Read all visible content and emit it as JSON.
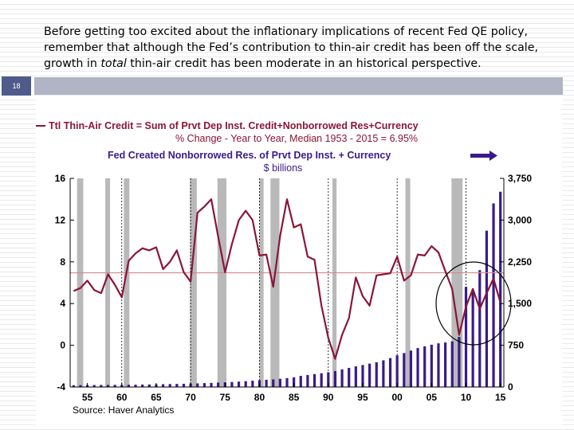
{
  "slide": {
    "number": "18",
    "header_text_1": "Before getting too excited about the inflationary implications of recent Fed QE policy, remember that although the Fed’s contribution to thin-air credit has been off the scale, growth in ",
    "header_emphasis": "total",
    "header_text_2": " thin-air credit has been moderate in an historical perspective."
  },
  "colors": {
    "line": "#8a1538",
    "bars": "#3a1a8a",
    "recession": "#b9b9b9",
    "median_line": "#d48a8a",
    "title_left": "#8a1538",
    "title_right": "#3a1a8a"
  },
  "chart_data": {
    "type": "bar",
    "title_left": "Ttl Thin-Air Credit = Sum of Prvt Dep Inst. Credit+Nonborrowed Res+Currency",
    "subtitle_left": "% Change - Year to Year, Median 1953 - 2015 = 6.95%",
    "title_right": "Fed Created Nonborrowed Res. of Prvt Dep Inst. + Currency",
    "subtitle_right": "$ billions",
    "source": "Source:   Haver Analytics",
    "x_range": [
      1952.5,
      2015.5
    ],
    "x_ticks": [
      1955,
      1960,
      1965,
      1970,
      1975,
      1980,
      1985,
      1990,
      1995,
      2000,
      2005,
      2010,
      2015
    ],
    "x_tick_labels": [
      "55",
      "60",
      "65",
      "70",
      "75",
      "80",
      "85",
      "90",
      "95",
      "00",
      "05",
      "10",
      "15"
    ],
    "y_left": {
      "min": -4,
      "max": 16,
      "ticks": [
        -4,
        0,
        4,
        8,
        12,
        16
      ],
      "tick_labels": [
        "-4",
        "0",
        "4",
        "8",
        "12",
        "16"
      ]
    },
    "y_right": {
      "min": 0,
      "max": 3750,
      "ticks": [
        0,
        750,
        1500,
        2250,
        3000,
        3750
      ],
      "tick_labels": [
        "0",
        "750",
        "1,500",
        "2,250",
        "3,000",
        "3,750"
      ]
    },
    "dashed_years": [
      1960,
      1970,
      1980,
      1990,
      2000,
      2010
    ],
    "median": 6.95,
    "recessions": [
      [
        1953.5,
        1954.4
      ],
      [
        1957.6,
        1958.3
      ],
      [
        1960.3,
        1961.1
      ],
      [
        1969.9,
        1970.9
      ],
      [
        1973.9,
        1975.2
      ],
      [
        1980.0,
        1980.6
      ],
      [
        1981.6,
        1982.9
      ],
      [
        1990.6,
        1991.2
      ],
      [
        2001.2,
        2001.9
      ],
      [
        2007.9,
        2009.5
      ]
    ],
    "series": [
      {
        "name": "Ttl Thin-Air Credit % Change Y/Y",
        "axis": "left",
        "x": [
          1953,
          1954,
          1955,
          1956,
          1957,
          1958,
          1959,
          1960,
          1961,
          1962,
          1963,
          1964,
          1965,
          1966,
          1967,
          1968,
          1969,
          1970,
          1971,
          1972,
          1973,
          1974,
          1975,
          1976,
          1977,
          1978,
          1979,
          1980,
          1981,
          1982,
          1983,
          1984,
          1985,
          1986,
          1987,
          1988,
          1989,
          1990,
          1991,
          1992,
          1993,
          1994,
          1995,
          1996,
          1997,
          1998,
          1999,
          2000,
          2001,
          2002,
          2003,
          2004,
          2005,
          2006,
          2007,
          2008,
          2009,
          2010,
          2011,
          2012,
          2013,
          2014,
          2015
        ],
        "values": [
          5.2,
          5.5,
          6.2,
          5.3,
          5.0,
          6.8,
          5.8,
          4.6,
          8.1,
          8.8,
          9.3,
          9.1,
          9.4,
          7.3,
          8.0,
          9.1,
          7.0,
          6.1,
          12.7,
          13.3,
          14.0,
          10.4,
          7.0,
          9.7,
          12.0,
          12.9,
          12.0,
          8.6,
          8.7,
          5.6,
          10.5,
          14.0,
          11.3,
          11.6,
          8.5,
          8.2,
          3.8,
          0.7,
          -1.3,
          1.0,
          2.6,
          6.5,
          4.7,
          3.8,
          6.7,
          6.8,
          6.9,
          8.5,
          6.2,
          6.7,
          8.7,
          8.6,
          9.5,
          8.9,
          7.1,
          5.4,
          1.0,
          3.7,
          5.4,
          3.5,
          5.0,
          6.4,
          4.1
        ]
      },
      {
        "name": "Fed Created Nonborrowed Res. + Currency ($ bil)",
        "axis": "right",
        "x": [
          1953,
          1954,
          1955,
          1956,
          1957,
          1958,
          1959,
          1960,
          1961,
          1962,
          1963,
          1964,
          1965,
          1966,
          1967,
          1968,
          1969,
          1970,
          1971,
          1972,
          1973,
          1974,
          1975,
          1976,
          1977,
          1978,
          1979,
          1980,
          1981,
          1982,
          1983,
          1984,
          1985,
          1986,
          1987,
          1988,
          1989,
          1990,
          1991,
          1992,
          1993,
          1994,
          1995,
          1996,
          1997,
          1998,
          1999,
          2000,
          2001,
          2002,
          2003,
          2004,
          2005,
          2006,
          2007,
          2008,
          2009,
          2010,
          2011,
          2012,
          2013,
          2014,
          2015
        ],
        "values": [
          32,
          34,
          35,
          36,
          37,
          38,
          39,
          39,
          41,
          42,
          44,
          46,
          48,
          50,
          53,
          56,
          58,
          61,
          65,
          70,
          74,
          80,
          85,
          90,
          97,
          105,
          113,
          122,
          130,
          137,
          148,
          160,
          174,
          200,
          216,
          232,
          247,
          265,
          287,
          316,
          343,
          371,
          395,
          420,
          445,
          480,
          520,
          570,
          610,
          655,
          700,
          730,
          760,
          785,
          800,
          820,
          900,
          1800,
          1710,
          2100,
          2810,
          3300,
          3510
        ]
      }
    ]
  }
}
